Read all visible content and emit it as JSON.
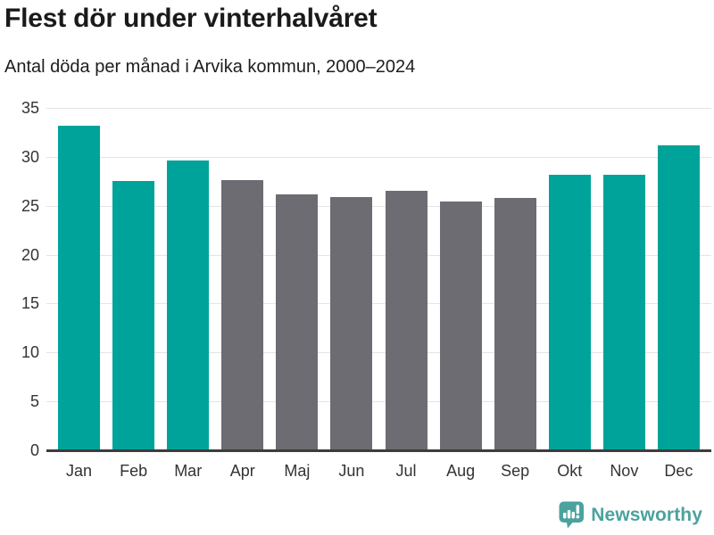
{
  "chart_data": {
    "type": "bar",
    "title": "Flest dör under vinterhalvåret",
    "subtitle": "Antal döda per månad i Arvika kommun, 2000–2024",
    "categories": [
      "Jan",
      "Feb",
      "Mar",
      "Apr",
      "Maj",
      "Jun",
      "Jul",
      "Aug",
      "Sep",
      "Okt",
      "Nov",
      "Dec"
    ],
    "values": [
      33.2,
      27.5,
      29.6,
      27.6,
      26.2,
      25.9,
      26.5,
      25.4,
      25.8,
      28.2,
      28.2,
      31.2
    ],
    "bar_color_keys": [
      "winter",
      "winter",
      "winter",
      "summer",
      "summer",
      "summer",
      "summer",
      "summer",
      "summer",
      "winter",
      "winter",
      "winter"
    ],
    "colors": {
      "winter": "#00a39a",
      "summer": "#6d6c72"
    },
    "xlabel": "",
    "ylabel": "",
    "ylim": [
      0,
      35
    ],
    "yticks": [
      0,
      5,
      10,
      15,
      20,
      25,
      30,
      35
    ],
    "grid": "horizontal",
    "legend": "none"
  },
  "footer": {
    "brand": "Newsworthy",
    "logo_color": "#4ba29e"
  }
}
